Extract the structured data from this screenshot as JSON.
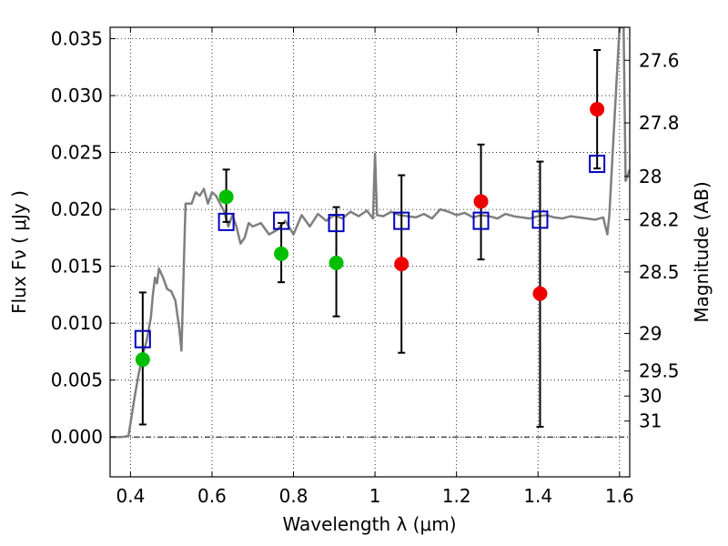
{
  "chart_data": {
    "type": "scatter",
    "title": "",
    "xlabel": "Wavelength  λ (μm)",
    "ylabel": "Flux  Fν  ( μJy )",
    "y2label": "Magnitude (AB)",
    "xlim": [
      0.35,
      1.625
    ],
    "ylim": [
      -0.0035,
      0.036
    ],
    "grid": true,
    "x_ticks": [
      0.4,
      0.6,
      0.8,
      1.0,
      1.2,
      1.4,
      1.6
    ],
    "x_tick_labels": [
      "0.4",
      "0.6",
      "0.8",
      "1",
      "1.2",
      "1.4",
      "1.6"
    ],
    "y_ticks": [
      0.0,
      0.005,
      0.01,
      0.015,
      0.02,
      0.025,
      0.03,
      0.035
    ],
    "y_tick_labels": [
      "0.000",
      "0.005",
      "0.010",
      "0.015",
      "0.020",
      "0.025",
      "0.030",
      "0.035"
    ],
    "mag_ticks": [
      {
        "label": "27.6",
        "flux": 0.0331
      },
      {
        "label": "27.8",
        "flux": 0.0276
      },
      {
        "label": "28",
        "flux": 0.0229
      },
      {
        "label": "28.2",
        "flux": 0.0191
      },
      {
        "label": "28.5",
        "flux": 0.0145
      },
      {
        "label": "29",
        "flux": 0.0091
      },
      {
        "label": "29.5",
        "flux": 0.0058
      },
      {
        "label": "30",
        "flux": 0.0036
      },
      {
        "label": "31",
        "flux": 0.0014
      }
    ],
    "colors": {
      "green": "#00bf00",
      "red": "#ee0000",
      "model_box": "#0000bf",
      "sed": "#7f7f7f",
      "error_bar": "#000000"
    },
    "sed_model": [
      [
        0.35,
        0.0
      ],
      [
        0.38,
        0.0
      ],
      [
        0.395,
        0.0001
      ],
      [
        0.41,
        0.0035
      ],
      [
        0.42,
        0.0055
      ],
      [
        0.43,
        0.0072
      ],
      [
        0.44,
        0.0085
      ],
      [
        0.45,
        0.0105
      ],
      [
        0.455,
        0.0125
      ],
      [
        0.46,
        0.014
      ],
      [
        0.465,
        0.0135
      ],
      [
        0.47,
        0.0148
      ],
      [
        0.48,
        0.014
      ],
      [
        0.49,
        0.013
      ],
      [
        0.5,
        0.0128
      ],
      [
        0.51,
        0.012
      ],
      [
        0.52,
        0.0095
      ],
      [
        0.525,
        0.0076
      ],
      [
        0.535,
        0.0205
      ],
      [
        0.55,
        0.0205
      ],
      [
        0.56,
        0.0215
      ],
      [
        0.57,
        0.0212
      ],
      [
        0.58,
        0.0218
      ],
      [
        0.59,
        0.0205
      ],
      [
        0.6,
        0.0215
      ],
      [
        0.61,
        0.0212
      ],
      [
        0.62,
        0.0205
      ],
      [
        0.63,
        0.0198
      ],
      [
        0.64,
        0.0185
      ],
      [
        0.65,
        0.0195
      ],
      [
        0.66,
        0.0185
      ],
      [
        0.67,
        0.017
      ],
      [
        0.68,
        0.0175
      ],
      [
        0.69,
        0.0188
      ],
      [
        0.7,
        0.0185
      ],
      [
        0.72,
        0.0188
      ],
      [
        0.74,
        0.0178
      ],
      [
        0.76,
        0.0182
      ],
      [
        0.78,
        0.019
      ],
      [
        0.8,
        0.0178
      ],
      [
        0.82,
        0.0195
      ],
      [
        0.84,
        0.0185
      ],
      [
        0.86,
        0.0196
      ],
      [
        0.88,
        0.019
      ],
      [
        0.9,
        0.0195
      ],
      [
        0.92,
        0.0192
      ],
      [
        0.94,
        0.0198
      ],
      [
        0.96,
        0.0194
      ],
      [
        0.98,
        0.0199
      ],
      [
        0.995,
        0.0192
      ],
      [
        1.0,
        0.0249
      ],
      [
        1.005,
        0.0195
      ],
      [
        1.02,
        0.0194
      ],
      [
        1.04,
        0.0198
      ],
      [
        1.06,
        0.0195
      ],
      [
        1.08,
        0.0194
      ],
      [
        1.1,
        0.0193
      ],
      [
        1.12,
        0.0196
      ],
      [
        1.14,
        0.0192
      ],
      [
        1.16,
        0.02
      ],
      [
        1.18,
        0.0198
      ],
      [
        1.2,
        0.0195
      ],
      [
        1.22,
        0.0197
      ],
      [
        1.24,
        0.0193
      ],
      [
        1.26,
        0.0195
      ],
      [
        1.28,
        0.0194
      ],
      [
        1.3,
        0.0192
      ],
      [
        1.32,
        0.0196
      ],
      [
        1.34,
        0.0194
      ],
      [
        1.36,
        0.0193
      ],
      [
        1.38,
        0.0192
      ],
      [
        1.4,
        0.0194
      ],
      [
        1.42,
        0.0195
      ],
      [
        1.44,
        0.0193
      ],
      [
        1.46,
        0.0192
      ],
      [
        1.48,
        0.0194
      ],
      [
        1.5,
        0.0193
      ],
      [
        1.52,
        0.0192
      ],
      [
        1.54,
        0.0191
      ],
      [
        1.56,
        0.0193
      ],
      [
        1.57,
        0.0178
      ],
      [
        1.575,
        0.0195
      ],
      [
        1.585,
        0.0262
      ],
      [
        1.6,
        0.036
      ],
      [
        1.61,
        0.036
      ],
      [
        1.615,
        0.0225
      ],
      [
        1.625,
        0.0235
      ]
    ],
    "green_points": [
      {
        "x": 0.43,
        "y": 0.0068,
        "err": [
          0.0011,
          0.0127
        ]
      },
      {
        "x": 0.635,
        "y": 0.0211,
        "err": [
          0.0189,
          0.0235
        ]
      },
      {
        "x": 0.77,
        "y": 0.0161,
        "err": [
          0.0136,
          0.0188
        ]
      },
      {
        "x": 0.905,
        "y": 0.0153,
        "err": [
          0.0106,
          0.0202
        ]
      }
    ],
    "red_points": [
      {
        "x": 1.065,
        "y": 0.0152,
        "err": [
          0.0074,
          0.023
        ]
      },
      {
        "x": 1.26,
        "y": 0.0207,
        "err": [
          0.0156,
          0.0257
        ]
      },
      {
        "x": 1.405,
        "y": 0.0126,
        "err": [
          0.0009,
          0.0242
        ]
      },
      {
        "x": 1.545,
        "y": 0.0288,
        "err": [
          0.0236,
          0.034
        ]
      }
    ],
    "model_points": [
      {
        "x": 0.43,
        "y": 0.0086
      },
      {
        "x": 0.635,
        "y": 0.0189
      },
      {
        "x": 0.77,
        "y": 0.019
      },
      {
        "x": 0.905,
        "y": 0.0188
      },
      {
        "x": 1.065,
        "y": 0.019
      },
      {
        "x": 1.26,
        "y": 0.019
      },
      {
        "x": 1.405,
        "y": 0.0191
      },
      {
        "x": 1.545,
        "y": 0.024
      }
    ]
  }
}
